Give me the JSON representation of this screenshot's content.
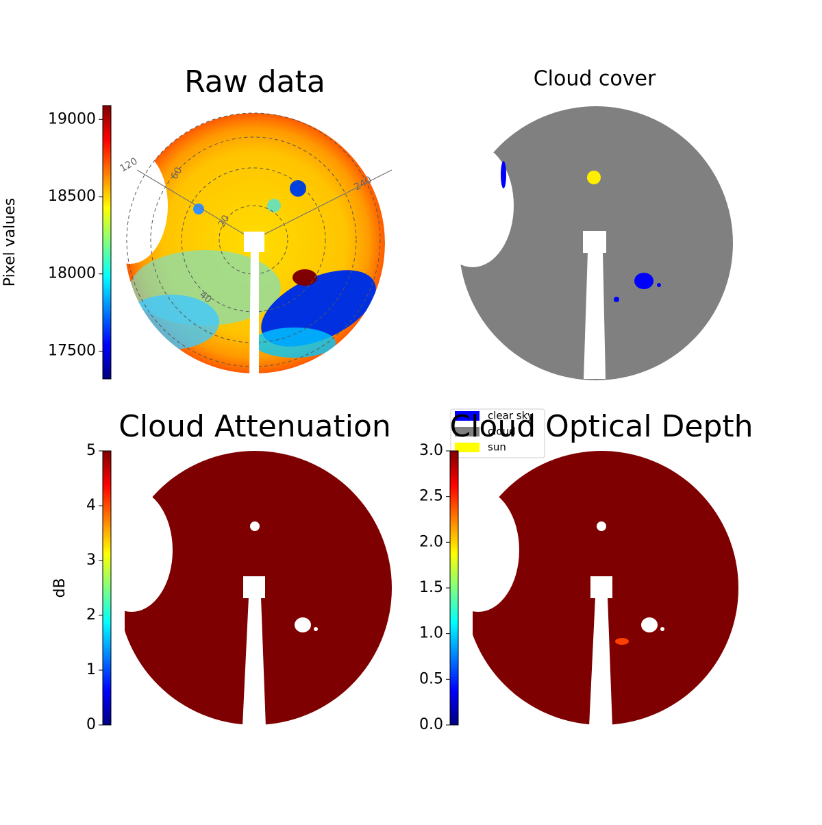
{
  "chart_data": [
    {
      "type": "image",
      "title": "Raw data",
      "colorbar": {
        "label": "Pixel values",
        "lim": [
          17320,
          19090
        ],
        "ticks": [
          17500,
          18000,
          18500,
          19000
        ]
      },
      "polar_labels": [
        "120",
        "60",
        "20",
        "40",
        "240"
      ]
    },
    {
      "type": "categorical-image",
      "title": "Cloud cover",
      "legend": [
        {
          "name": "clear sky",
          "color": "#0000ff"
        },
        {
          "name": "cloud",
          "color": "#808080"
        },
        {
          "name": "sun",
          "color": "#ffff00"
        }
      ]
    },
    {
      "type": "image",
      "title": "Cloud Attenuation",
      "colorbar": {
        "label": "dB",
        "lim": [
          0,
          5
        ],
        "ticks": [
          0,
          1,
          2,
          3,
          4,
          5
        ]
      }
    },
    {
      "type": "image",
      "title": "Cloud Optical Depth",
      "colorbar": {
        "lim": [
          0,
          3
        ],
        "ticks": [
          {
            "value": 0,
            "label": "0.0"
          },
          0.5,
          {
            "value": 1,
            "label": "1.0"
          },
          1.5,
          {
            "value": 2,
            "label": "2.0"
          },
          2.5,
          {
            "value": 3,
            "label": "3.0"
          }
        ]
      }
    }
  ]
}
